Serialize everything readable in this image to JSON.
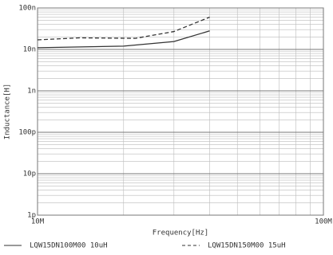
{
  "chart_data": {
    "type": "line",
    "xlabel": "Frequency[Hz]",
    "ylabel": "Inductance[H]",
    "xscale": "log",
    "yscale": "log",
    "grid": true,
    "xlim": [
      10000000,
      100000000
    ],
    "xticks": [
      {
        "value": 10000000,
        "label": "10M"
      },
      {
        "value": 100000000,
        "label": "100M"
      }
    ],
    "ylim": [
      1e-12,
      1e-07
    ],
    "yticks": [
      {
        "value": 1e-07,
        "label": "100n"
      },
      {
        "value": 1e-08,
        "label": "10n"
      },
      {
        "value": 1e-09,
        "label": "1n"
      },
      {
        "value": 1e-10,
        "label": "100p"
      },
      {
        "value": 1e-11,
        "label": "10p"
      },
      {
        "value": 1e-12,
        "label": "1p"
      }
    ],
    "series": [
      {
        "name": "LQW15DN100M00 10uH",
        "color": "#333333",
        "dash": false,
        "x": [
          10000000,
          20000000,
          30000000,
          40000000
        ],
        "values": [
          1.1e-08,
          1.2e-08,
          1.55e-08,
          2.8e-08
        ]
      },
      {
        "name": "LQW15DN150M00 15uH",
        "color": "#333333",
        "dash": true,
        "x": [
          10000000,
          14000000,
          22000000,
          30000000,
          40000000
        ],
        "values": [
          1.7e-08,
          1.9e-08,
          1.85e-08,
          2.7e-08,
          6e-08
        ]
      }
    ]
  }
}
